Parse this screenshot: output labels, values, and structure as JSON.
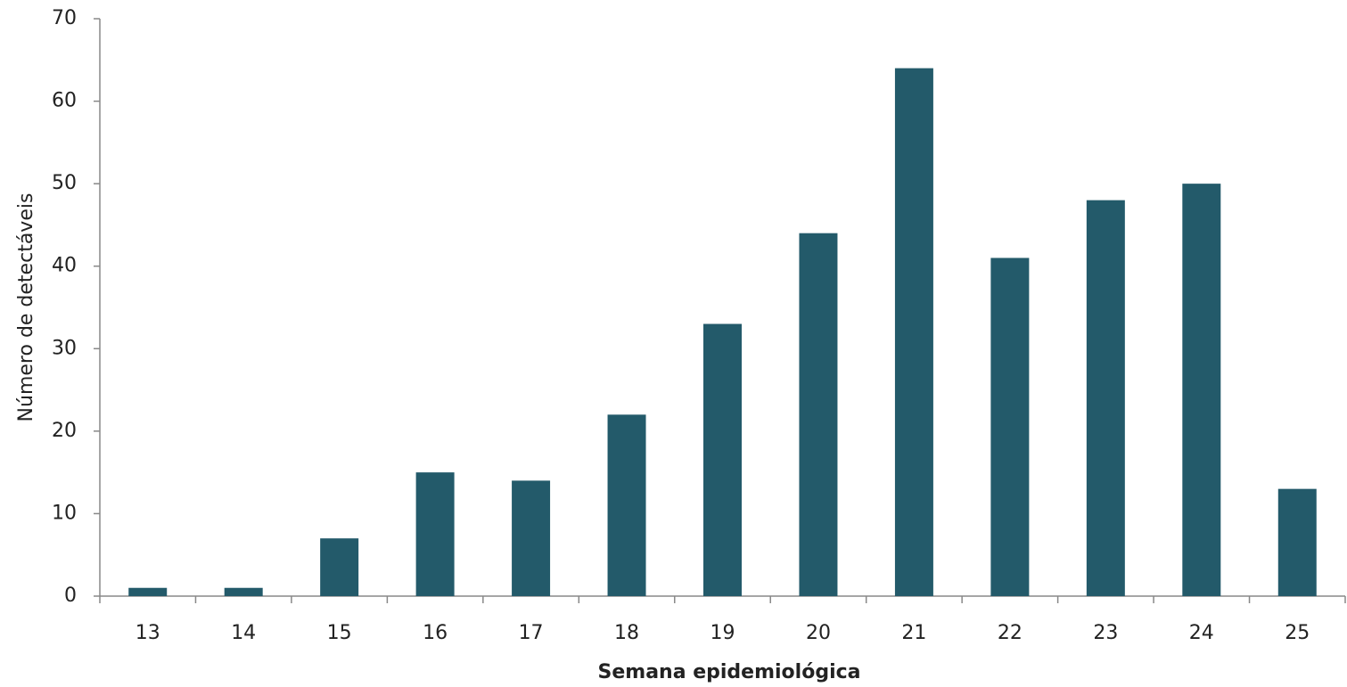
{
  "chart_data": {
    "type": "bar",
    "x_label": "Semana epidemiológica",
    "y_label": "Número de detectáveis",
    "categories": [
      "13",
      "14",
      "15",
      "16",
      "17",
      "18",
      "19",
      "20",
      "21",
      "22",
      "23",
      "24",
      "25"
    ],
    "values": [
      1,
      1,
      7,
      15,
      14,
      22,
      33,
      44,
      64,
      41,
      48,
      50,
      13
    ],
    "color": "#235a6a",
    "ylim": [
      0,
      70
    ],
    "yticks": [
      0,
      10,
      20,
      30,
      40,
      50,
      60,
      70
    ],
    "grid": false
  }
}
